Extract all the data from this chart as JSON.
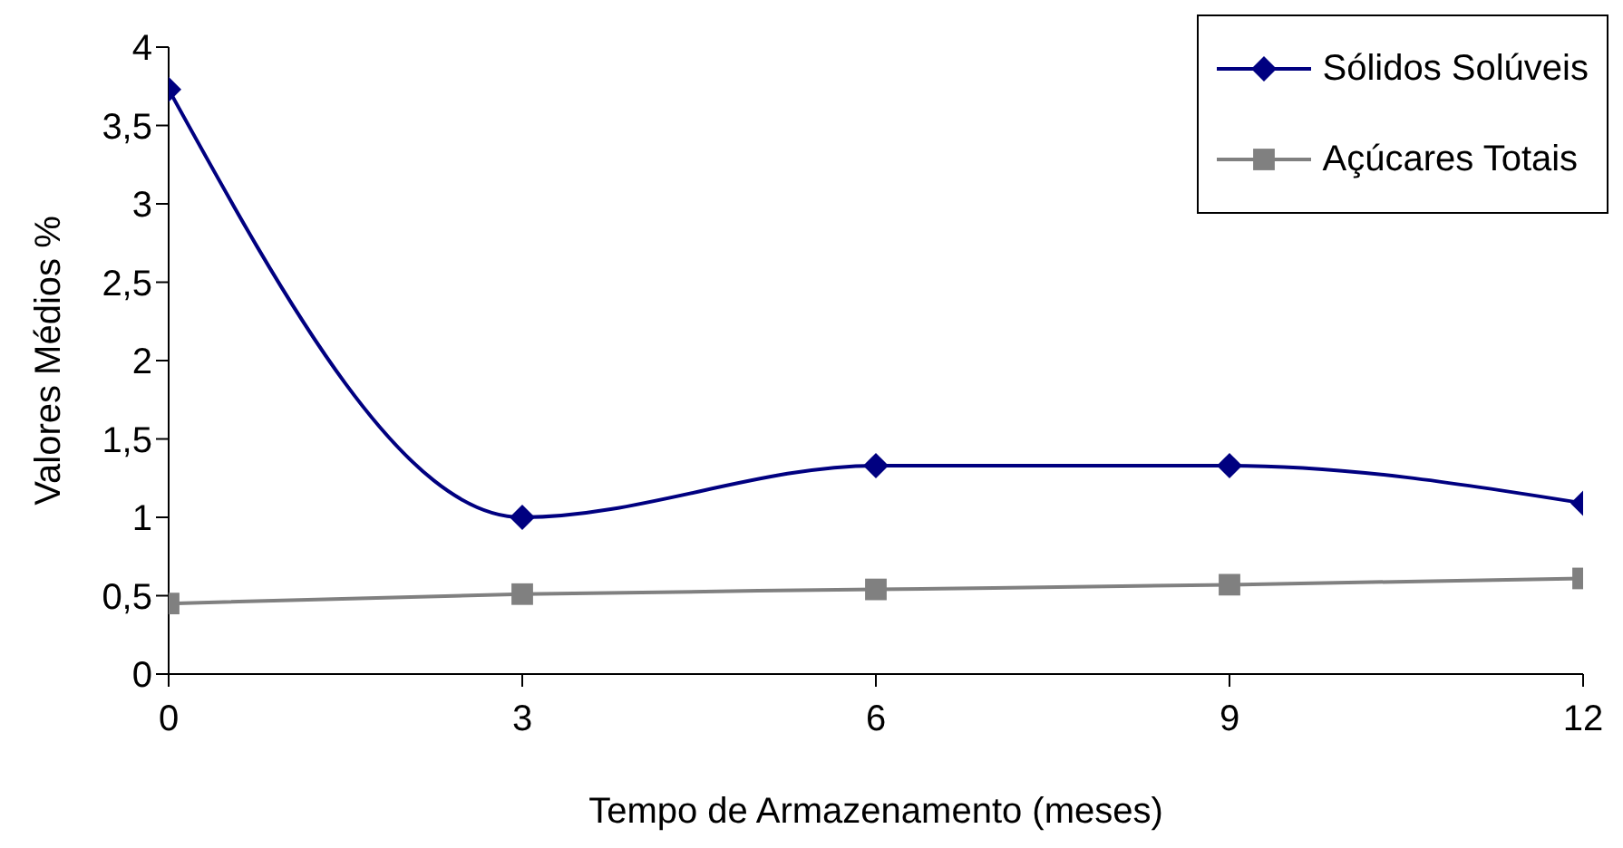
{
  "chart_data": {
    "type": "line",
    "xlabel": "Tempo de Armazenamento (meses)",
    "ylabel": "Valores Médios %",
    "x": [
      0,
      3,
      6,
      9,
      12
    ],
    "series": [
      {
        "name": "Sólidos Solúveis",
        "color": "#000080",
        "marker": "diamond",
        "values": [
          3.73,
          1.0,
          1.33,
          1.33,
          1.09
        ]
      },
      {
        "name": "Açúcares Totais",
        "color": "#808080",
        "marker": "square",
        "values": [
          0.45,
          0.51,
          0.54,
          0.57,
          0.61
        ]
      }
    ],
    "xlim": [
      0,
      12
    ],
    "xticks": [
      0,
      3,
      6,
      9,
      12
    ],
    "ylim": [
      0,
      4
    ],
    "yticks": [
      0,
      {
        "value": 0.5,
        "label": "0,5"
      },
      1,
      {
        "value": 1.5,
        "label": "1,5"
      },
      2,
      {
        "value": 2.5,
        "label": "2,5"
      },
      3,
      {
        "value": 3.5,
        "label": "3,5"
      },
      4
    ],
    "legend": "top right",
    "grid": false
  }
}
